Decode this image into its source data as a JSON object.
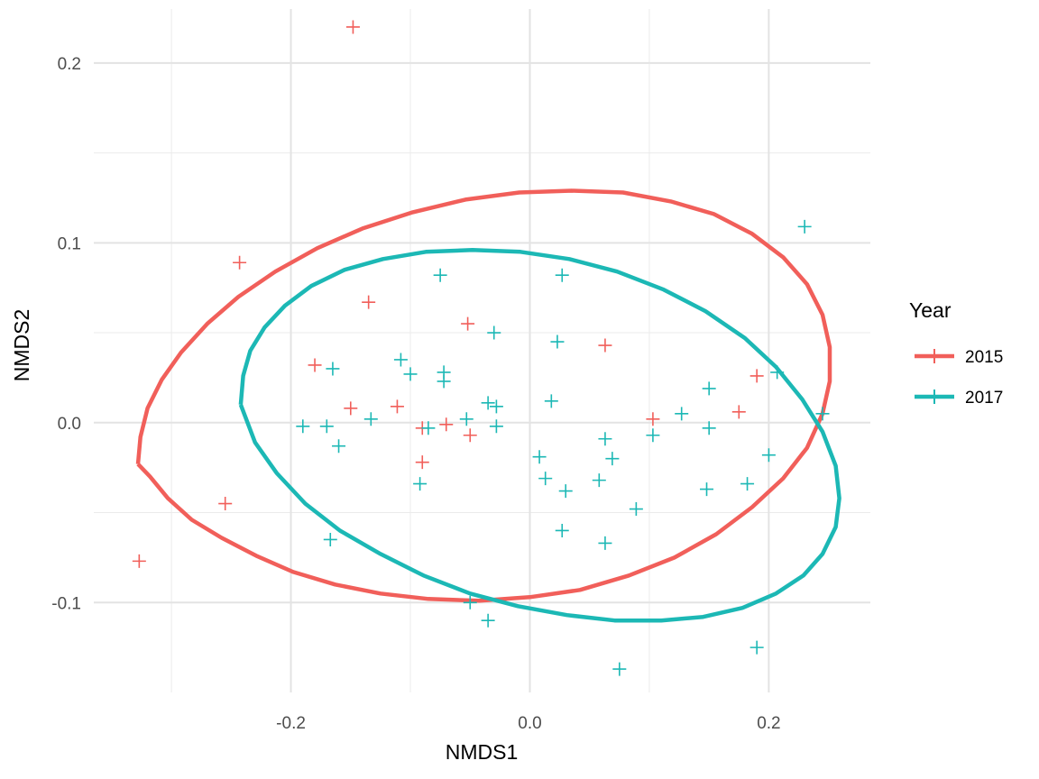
{
  "chart_data": {
    "type": "scatter",
    "xlabel": "NMDS1",
    "ylabel": "NMDS2",
    "xlim": [
      -0.365,
      0.285
    ],
    "ylim": [
      -0.15,
      0.23
    ],
    "x_ticks": [
      -0.2,
      0.0,
      0.2
    ],
    "x_tick_labels": [
      "-0.2",
      "0.0",
      "0.2"
    ],
    "y_ticks": [
      -0.1,
      0.0,
      0.1,
      0.2
    ],
    "y_tick_labels": [
      "-0.1",
      "0.0",
      "0.1",
      "0.2"
    ],
    "grid": true,
    "marker": "plus",
    "legend": {
      "title": "Year",
      "position": "right"
    },
    "series": [
      {
        "name": "2015",
        "color": "#F15F5A",
        "points": [
          [
            -0.148,
            0.22
          ],
          [
            -0.243,
            0.089
          ],
          [
            -0.135,
            0.067
          ],
          [
            -0.052,
            0.055
          ],
          [
            0.063,
            0.043
          ],
          [
            -0.18,
            0.032
          ],
          [
            0.19,
            0.026
          ],
          [
            -0.15,
            0.008
          ],
          [
            -0.111,
            0.009
          ],
          [
            0.103,
            0.002
          ],
          [
            0.175,
            0.006
          ],
          [
            -0.07,
            -0.001
          ],
          [
            -0.09,
            -0.003
          ],
          [
            -0.05,
            -0.007
          ],
          [
            -0.09,
            -0.022
          ],
          [
            -0.255,
            -0.045
          ],
          [
            -0.327,
            -0.077
          ]
        ],
        "ellipse": [
          [
            -0.328,
            -0.023
          ],
          [
            -0.326,
            -0.008
          ],
          [
            -0.32,
            0.008
          ],
          [
            -0.308,
            0.024
          ],
          [
            -0.292,
            0.039
          ],
          [
            -0.27,
            0.055
          ],
          [
            -0.244,
            0.07
          ],
          [
            -0.213,
            0.084
          ],
          [
            -0.178,
            0.097
          ],
          [
            -0.14,
            0.108
          ],
          [
            -0.098,
            0.117
          ],
          [
            -0.054,
            0.124
          ],
          [
            -0.009,
            0.128
          ],
          [
            0.035,
            0.129
          ],
          [
            0.078,
            0.128
          ],
          [
            0.118,
            0.123
          ],
          [
            0.154,
            0.116
          ],
          [
            0.186,
            0.105
          ],
          [
            0.212,
            0.092
          ],
          [
            0.232,
            0.077
          ],
          [
            0.245,
            0.06
          ],
          [
            0.251,
            0.042
          ],
          [
            0.251,
            0.023
          ],
          [
            0.245,
            0.005
          ],
          [
            0.232,
            -0.014
          ],
          [
            0.212,
            -0.031
          ],
          [
            0.186,
            -0.047
          ],
          [
            0.156,
            -0.062
          ],
          [
            0.121,
            -0.075
          ],
          [
            0.083,
            -0.085
          ],
          [
            0.042,
            -0.093
          ],
          [
            0.0,
            -0.097
          ],
          [
            -0.042,
            -0.099
          ],
          [
            -0.085,
            -0.098
          ],
          [
            -0.125,
            -0.095
          ],
          [
            -0.163,
            -0.09
          ],
          [
            -0.198,
            -0.083
          ],
          [
            -0.229,
            -0.074
          ],
          [
            -0.258,
            -0.064
          ],
          [
            -0.283,
            -0.054
          ],
          [
            -0.303,
            -0.042
          ],
          [
            -0.318,
            -0.03
          ],
          [
            -0.328,
            -0.023
          ]
        ]
      },
      {
        "name": "2017",
        "color": "#1CB8B5",
        "points": [
          [
            0.23,
            0.109
          ],
          [
            -0.075,
            0.082
          ],
          [
            0.027,
            0.082
          ],
          [
            -0.03,
            0.05
          ],
          [
            0.023,
            0.045
          ],
          [
            -0.165,
            0.03
          ],
          [
            -0.108,
            0.035
          ],
          [
            -0.1,
            0.027
          ],
          [
            -0.072,
            0.028
          ],
          [
            -0.072,
            0.023
          ],
          [
            0.207,
            0.028
          ],
          [
            0.15,
            0.019
          ],
          [
            -0.035,
            0.011
          ],
          [
            -0.028,
            0.009
          ],
          [
            0.018,
            0.012
          ],
          [
            0.127,
            0.005
          ],
          [
            0.245,
            0.005
          ],
          [
            -0.133,
            0.002
          ],
          [
            -0.053,
            0.002
          ],
          [
            -0.19,
            -0.002
          ],
          [
            -0.17,
            -0.002
          ],
          [
            -0.028,
            -0.002
          ],
          [
            -0.085,
            -0.003
          ],
          [
            0.15,
            -0.003
          ],
          [
            0.063,
            -0.009
          ],
          [
            0.103,
            -0.007
          ],
          [
            -0.16,
            -0.013
          ],
          [
            0.008,
            -0.019
          ],
          [
            0.069,
            -0.02
          ],
          [
            0.2,
            -0.018
          ],
          [
            -0.092,
            -0.034
          ],
          [
            0.013,
            -0.031
          ],
          [
            0.058,
            -0.032
          ],
          [
            0.03,
            -0.038
          ],
          [
            0.148,
            -0.037
          ],
          [
            0.182,
            -0.034
          ],
          [
            0.089,
            -0.048
          ],
          [
            0.027,
            -0.06
          ],
          [
            -0.167,
            -0.065
          ],
          [
            0.063,
            -0.067
          ],
          [
            -0.05,
            -0.1
          ],
          [
            -0.035,
            -0.11
          ],
          [
            0.19,
            -0.125
          ],
          [
            0.075,
            -0.137
          ]
        ],
        "ellipse": [
          [
            -0.242,
            0.01
          ],
          [
            -0.24,
            0.026
          ],
          [
            -0.234,
            0.04
          ],
          [
            -0.222,
            0.053
          ],
          [
            -0.205,
            0.065
          ],
          [
            -0.183,
            0.076
          ],
          [
            -0.155,
            0.085
          ],
          [
            -0.123,
            0.091
          ],
          [
            -0.087,
            0.095
          ],
          [
            -0.048,
            0.096
          ],
          [
            -0.008,
            0.095
          ],
          [
            0.033,
            0.091
          ],
          [
            0.073,
            0.084
          ],
          [
            0.112,
            0.074
          ],
          [
            0.147,
            0.062
          ],
          [
            0.18,
            0.047
          ],
          [
            0.206,
            0.031
          ],
          [
            0.228,
            0.013
          ],
          [
            0.245,
            -0.005
          ],
          [
            0.256,
            -0.024
          ],
          [
            0.259,
            -0.042
          ],
          [
            0.256,
            -0.058
          ],
          [
            0.245,
            -0.073
          ],
          [
            0.229,
            -0.085
          ],
          [
            0.206,
            -0.095
          ],
          [
            0.178,
            -0.103
          ],
          [
            0.145,
            -0.108
          ],
          [
            0.11,
            -0.11
          ],
          [
            0.071,
            -0.11
          ],
          [
            0.031,
            -0.107
          ],
          [
            -0.01,
            -0.102
          ],
          [
            -0.05,
            -0.095
          ],
          [
            -0.089,
            -0.085
          ],
          [
            -0.125,
            -0.073
          ],
          [
            -0.159,
            -0.06
          ],
          [
            -0.188,
            -0.045
          ],
          [
            -0.212,
            -0.028
          ],
          [
            -0.23,
            -0.011
          ],
          [
            -0.242,
            0.01
          ]
        ]
      }
    ]
  }
}
